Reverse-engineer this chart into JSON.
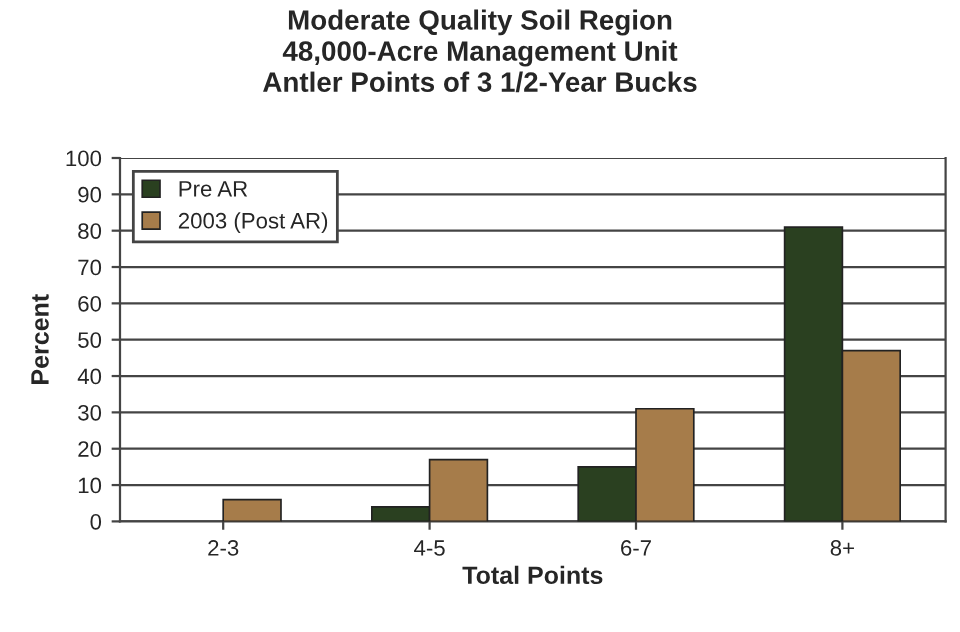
{
  "chart_data": {
    "type": "bar",
    "title": "Moderate Quality Soil Region\n48,000-Acre Management Unit\nAntler Points of 3 1/2-Year Bucks",
    "xlabel": "Total Points",
    "ylabel": "Percent",
    "categories": [
      "2-3",
      "4-5",
      "6-7",
      "8+"
    ],
    "series": [
      {
        "name": "Pre AR",
        "color": "#2a4020",
        "values": [
          null,
          4,
          15,
          81
        ]
      },
      {
        "name": "2003 (Post AR)",
        "color": "#a67c4a",
        "values": [
          6,
          17,
          31,
          47
        ]
      }
    ],
    "ylim": [
      0,
      100
    ],
    "yticks": [
      0,
      10,
      20,
      30,
      40,
      50,
      60,
      70,
      80,
      90,
      100
    ],
    "grid": "y",
    "legend": "top left"
  }
}
